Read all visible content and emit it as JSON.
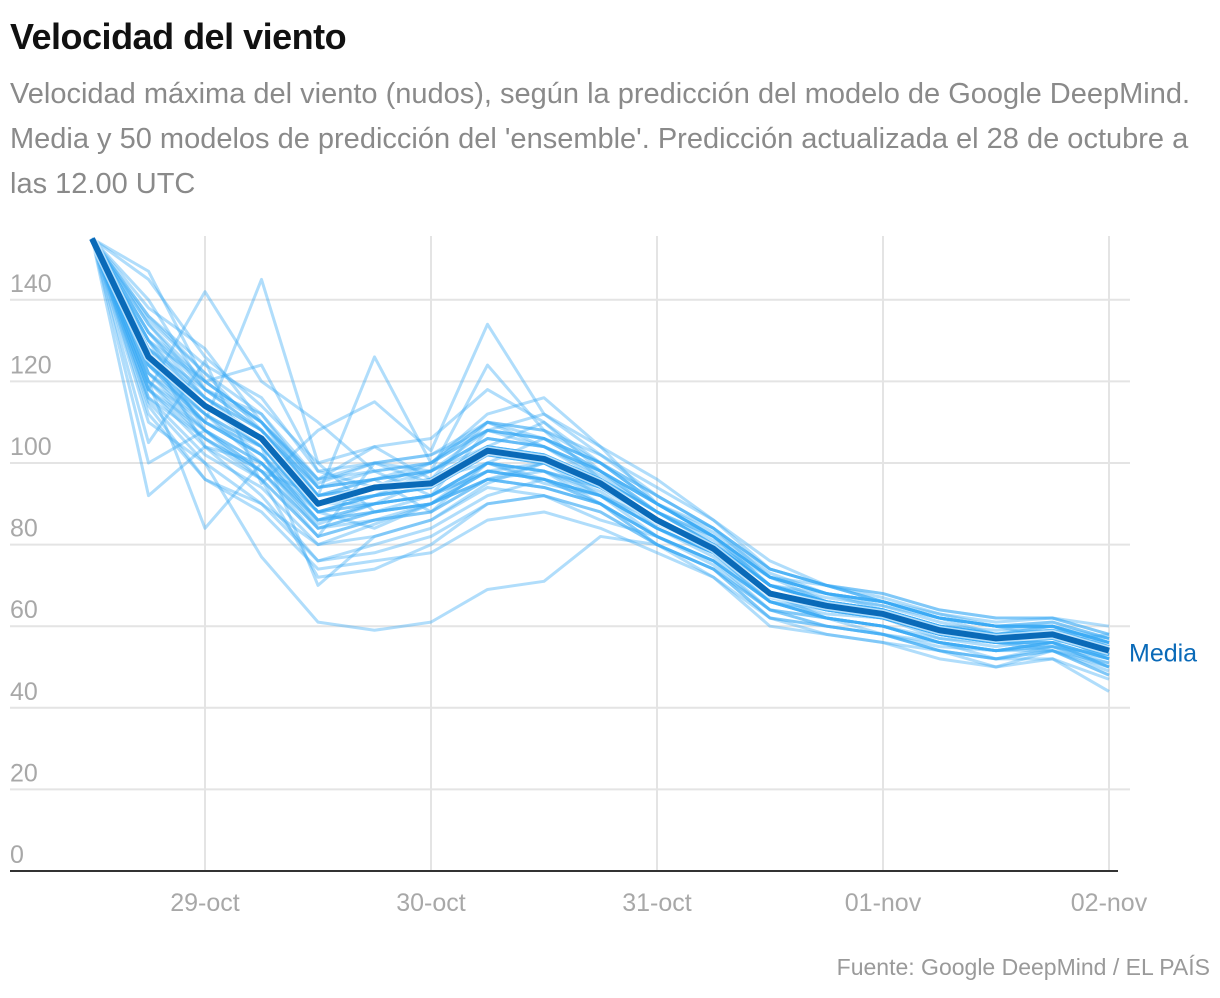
{
  "title": "Velocidad del viento",
  "subtitle": "Velocidad máxima del viento (nudos), según la predicción del modelo de Google DeepMind. Media y 50 modelos de predicción del 'ensemble'. Predicción actualizada el 28 de octubre a las 12.00 UTC",
  "source": "Fuente: Google DeepMind / EL PAÍS",
  "colors": {
    "mean": "#0a6ab8",
    "ensemble": "#3aaaf5",
    "grid": "#e4e4e4",
    "axis": "#333333"
  },
  "chart_data": {
    "type": "line",
    "title": "Velocidad del viento",
    "xlabel": "",
    "ylabel": "nudos",
    "ylim": [
      0,
      155
    ],
    "yticks": [
      0,
      20,
      40,
      60,
      80,
      100,
      120,
      140
    ],
    "xticks": [
      "29-oct",
      "30-oct",
      "31-oct",
      "01-nov",
      "02-nov"
    ],
    "x_step_hours": 6,
    "x_start": "28-oct 12:00",
    "grid": true,
    "mean_label": "Media",
    "mean": [
      155,
      126,
      114,
      106,
      90,
      94,
      95,
      103,
      101,
      95,
      86,
      79,
      68,
      65,
      63,
      59,
      57,
      58,
      54
    ],
    "ensemble": [
      [
        155,
        147,
        120,
        110,
        95,
        100,
        98,
        104,
        110,
        98,
        88,
        80,
        72,
        66,
        64,
        60,
        58,
        60,
        55
      ],
      [
        155,
        92,
        104,
        100,
        85,
        90,
        96,
        100,
        95,
        92,
        84,
        77,
        66,
        63,
        62,
        57,
        56,
        55,
        52
      ],
      [
        155,
        118,
        142,
        120,
        110,
        98,
        92,
        108,
        112,
        104,
        90,
        82,
        70,
        68,
        65,
        62,
        60,
        57,
        56
      ],
      [
        155,
        130,
        108,
        96,
        72,
        74,
        80,
        90,
        92,
        86,
        82,
        76,
        64,
        62,
        60,
        56,
        52,
        54,
        50
      ],
      [
        155,
        125,
        110,
        145,
        100,
        88,
        90,
        96,
        98,
        90,
        80,
        74,
        62,
        60,
        58,
        55,
        54,
        56,
        58
      ],
      [
        155,
        135,
        122,
        108,
        92,
        126,
        100,
        110,
        104,
        97,
        88,
        81,
        70,
        65,
        62,
        60,
        59,
        60,
        54
      ],
      [
        155,
        110,
        100,
        77,
        61,
        59,
        61,
        69,
        71,
        82,
        80,
        72,
        60,
        58,
        56,
        54,
        52,
        55,
        53
      ],
      [
        155,
        140,
        118,
        112,
        94,
        96,
        88,
        100,
        106,
        100,
        90,
        83,
        73,
        68,
        66,
        62,
        58,
        59,
        57
      ],
      [
        155,
        120,
        84,
        100,
        88,
        92,
        98,
        124,
        108,
        96,
        84,
        78,
        67,
        64,
        62,
        58,
        56,
        58,
        52
      ],
      [
        155,
        128,
        114,
        104,
        70,
        82,
        86,
        95,
        100,
        92,
        82,
        75,
        64,
        60,
        58,
        54,
        50,
        52,
        47
      ],
      [
        155,
        105,
        125,
        95,
        108,
        115,
        103,
        134,
        112,
        102,
        92,
        84,
        72,
        70,
        66,
        63,
        60,
        60,
        56
      ],
      [
        155,
        115,
        100,
        90,
        80,
        85,
        90,
        98,
        96,
        90,
        80,
        74,
        62,
        58,
        56,
        52,
        50,
        54,
        48
      ],
      [
        155,
        130,
        120,
        124,
        98,
        94,
        100,
        112,
        116,
        104,
        96,
        86,
        76,
        70,
        68,
        64,
        62,
        62,
        58
      ],
      [
        155,
        122,
        112,
        102,
        86,
        90,
        92,
        100,
        98,
        93,
        84,
        78,
        66,
        62,
        60,
        57,
        55,
        57,
        53
      ],
      [
        155,
        138,
        128,
        110,
        96,
        104,
        106,
        118,
        110,
        100,
        90,
        82,
        70,
        67,
        65,
        61,
        58,
        59,
        55
      ],
      [
        155,
        112,
        96,
        88,
        74,
        76,
        78,
        86,
        88,
        84,
        78,
        72,
        62,
        60,
        58,
        54,
        52,
        52,
        44
      ],
      [
        155,
        125,
        112,
        100,
        84,
        86,
        88,
        96,
        100,
        94,
        86,
        80,
        68,
        66,
        64,
        60,
        58,
        60,
        56
      ],
      [
        155,
        118,
        106,
        96,
        82,
        100,
        95,
        104,
        102,
        96,
        86,
        78,
        68,
        62,
        58,
        56,
        54,
        56,
        52
      ],
      [
        155,
        132,
        118,
        108,
        92,
        94,
        98,
        106,
        104,
        98,
        88,
        80,
        70,
        66,
        64,
        60,
        58,
        58,
        54
      ],
      [
        155,
        126,
        116,
        106,
        90,
        92,
        94,
        102,
        100,
        94,
        85,
        79,
        68,
        65,
        63,
        59,
        57,
        58,
        54
      ],
      [
        155,
        145,
        126,
        114,
        100,
        104,
        96,
        110,
        108,
        102,
        94,
        86,
        74,
        70,
        67,
        63,
        61,
        62,
        60
      ],
      [
        155,
        100,
        108,
        98,
        92,
        96,
        100,
        108,
        104,
        96,
        86,
        78,
        66,
        62,
        60,
        56,
        54,
        55,
        50
      ],
      [
        155,
        124,
        110,
        104,
        88,
        84,
        90,
        100,
        96,
        90,
        82,
        76,
        66,
        64,
        62,
        58,
        56,
        58,
        54
      ],
      [
        155,
        128,
        104,
        92,
        76,
        80,
        84,
        92,
        96,
        92,
        84,
        78,
        68,
        64,
        62,
        58,
        56,
        54,
        51
      ],
      [
        155,
        136,
        124,
        116,
        98,
        100,
        102,
        108,
        106,
        100,
        90,
        82,
        72,
        68,
        66,
        62,
        60,
        61,
        57
      ],
      [
        155,
        120,
        110,
        102,
        86,
        90,
        92,
        98,
        100,
        94,
        86,
        80,
        70,
        66,
        62,
        58,
        56,
        58,
        52
      ],
      [
        155,
        116,
        102,
        94,
        80,
        82,
        86,
        94,
        92,
        88,
        80,
        74,
        64,
        62,
        60,
        56,
        54,
        56,
        50
      ],
      [
        155,
        130,
        114,
        106,
        88,
        92,
        96,
        104,
        102,
        96,
        88,
        82,
        72,
        68,
        64,
        60,
        58,
        58,
        54
      ],
      [
        155,
        122,
        108,
        98,
        84,
        88,
        92,
        98,
        96,
        92,
        86,
        80,
        70,
        66,
        64,
        60,
        56,
        56,
        52
      ],
      [
        155,
        134,
        120,
        110,
        92,
        96,
        98,
        106,
        104,
        98,
        90,
        84,
        74,
        70,
        66,
        62,
        60,
        60,
        56
      ],
      [
        155,
        124,
        112,
        104,
        90,
        92,
        94,
        102,
        100,
        94,
        86,
        78,
        68,
        64,
        62,
        58,
        56,
        58,
        54
      ],
      [
        155,
        126,
        114,
        106,
        92,
        94,
        96,
        104,
        102,
        96,
        88,
        80,
        70,
        66,
        64,
        60,
        58,
        58,
        55
      ],
      [
        155,
        118,
        104,
        96,
        82,
        86,
        88,
        96,
        94,
        90,
        82,
        76,
        66,
        62,
        60,
        56,
        54,
        56,
        50
      ],
      [
        155,
        132,
        116,
        108,
        94,
        96,
        98,
        106,
        104,
        98,
        90,
        82,
        72,
        68,
        66,
        62,
        60,
        60,
        56
      ],
      [
        155,
        114,
        96,
        90,
        76,
        78,
        82,
        90,
        92,
        88,
        80,
        74,
        64,
        60,
        58,
        54,
        52,
        54,
        48
      ],
      [
        155,
        128,
        118,
        110,
        96,
        98,
        100,
        110,
        108,
        100,
        92,
        84,
        74,
        70,
        68,
        64,
        62,
        62,
        58
      ],
      [
        155,
        120,
        108,
        100,
        86,
        88,
        90,
        98,
        96,
        92,
        84,
        78,
        68,
        64,
        62,
        58,
        56,
        56,
        52
      ],
      [
        155,
        136,
        122,
        112,
        96,
        100,
        102,
        110,
        106,
        100,
        92,
        84,
        74,
        70,
        66,
        62,
        60,
        60,
        57
      ],
      [
        155,
        124,
        110,
        102,
        88,
        90,
        92,
        100,
        98,
        94,
        86,
        80,
        70,
        66,
        64,
        60,
        58,
        58,
        53
      ],
      [
        155,
        130,
        116,
        108,
        92,
        94,
        96,
        104,
        102,
        96,
        88,
        82,
        72,
        68,
        66,
        62,
        60,
        60,
        56
      ],
      [
        155,
        116,
        106,
        98,
        84,
        88,
        90,
        96,
        94,
        90,
        82,
        76,
        66,
        62,
        60,
        56,
        54,
        54,
        49
      ],
      [
        155,
        126,
        112,
        104,
        88,
        92,
        94,
        102,
        100,
        94,
        86,
        80,
        70,
        66,
        64,
        60,
        58,
        58,
        54
      ],
      [
        155,
        122,
        110,
        102,
        90,
        90,
        92,
        100,
        98,
        94,
        86,
        78,
        68,
        64,
        62,
        58,
        56,
        57,
        53
      ],
      [
        155,
        134,
        118,
        108,
        94,
        96,
        98,
        108,
        106,
        98,
        90,
        82,
        72,
        68,
        66,
        62,
        60,
        61,
        57
      ],
      [
        155,
        120,
        106,
        98,
        82,
        86,
        90,
        96,
        94,
        90,
        82,
        76,
        66,
        62,
        60,
        56,
        54,
        55,
        51
      ],
      [
        155,
        128,
        116,
        106,
        90,
        94,
        96,
        104,
        102,
        96,
        88,
        80,
        70,
        66,
        64,
        60,
        58,
        59,
        55
      ],
      [
        155,
        124,
        114,
        104,
        88,
        90,
        92,
        100,
        98,
        92,
        84,
        78,
        68,
        64,
        62,
        58,
        56,
        57,
        53
      ],
      [
        155,
        132,
        120,
        110,
        94,
        98,
        100,
        108,
        106,
        98,
        90,
        82,
        72,
        68,
        66,
        62,
        60,
        60,
        56
      ],
      [
        155,
        118,
        108,
        100,
        86,
        88,
        90,
        98,
        96,
        92,
        84,
        78,
        68,
        64,
        62,
        58,
        56,
        56,
        52
      ],
      [
        155,
        126,
        114,
        106,
        90,
        92,
        94,
        102,
        100,
        94,
        86,
        80,
        70,
        66,
        64,
        60,
        58,
        58,
        54
      ]
    ]
  }
}
